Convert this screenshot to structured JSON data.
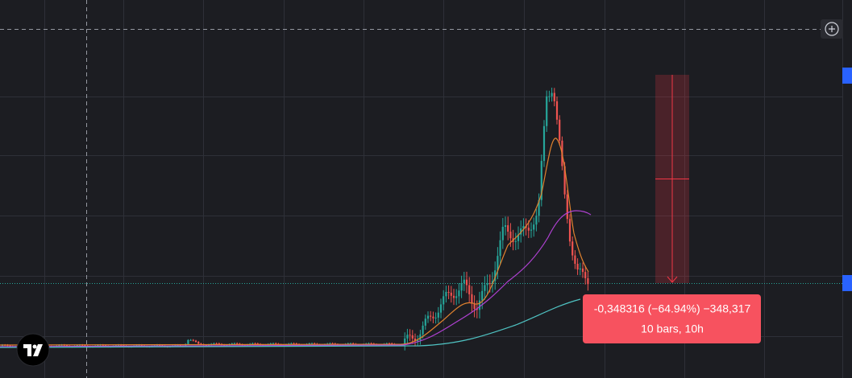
{
  "measure": {
    "change": "-0,348316 (−64.94%) −348,317",
    "span": "10 bars, 10h"
  }
}
